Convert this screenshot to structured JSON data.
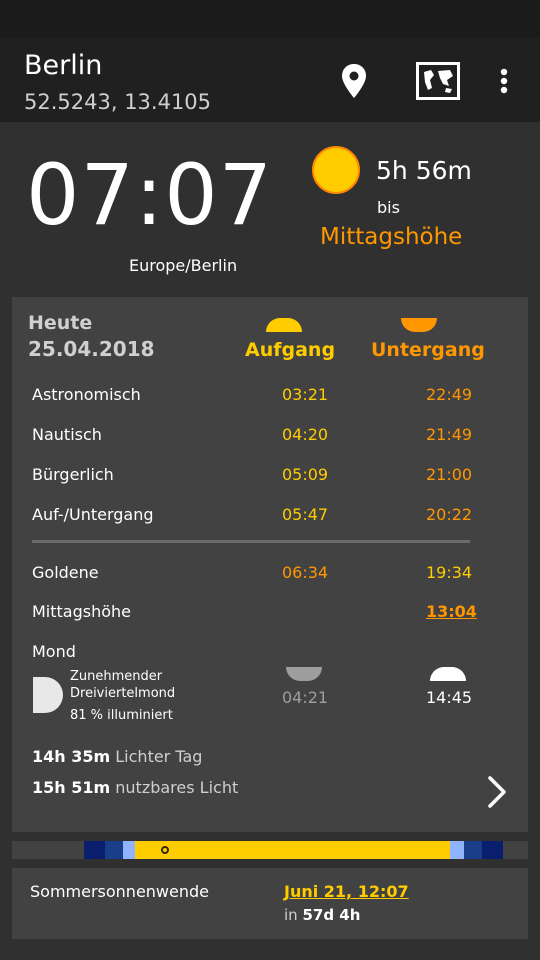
{
  "toolbar": {
    "city": "Berlin",
    "coords": "52.5243, 13.4105",
    "icons": [
      "location-pin-icon",
      "world-map-icon",
      "overflow-menu-icon"
    ]
  },
  "clock": {
    "time": "07:07",
    "timezone": "Europe/Berlin",
    "countdown": "5h 56m",
    "until_word": "bis",
    "next_event": "Mittagshöhe"
  },
  "today": {
    "label": "Heute",
    "date": "25.04.2018",
    "rise_header": "Aufgang",
    "set_header": "Untergang",
    "rows": [
      {
        "label": "Astronomisch",
        "rise": "03:21",
        "set": "22:49"
      },
      {
        "label": "Nautisch",
        "rise": "04:20",
        "set": "21:49"
      },
      {
        "label": "Bürgerlich",
        "rise": "05:09",
        "set": "21:00"
      },
      {
        "label": "Auf-/Untergang",
        "rise": "05:47",
        "set": "20:22"
      }
    ],
    "golden": {
      "label": "Goldene",
      "rise": "06:34",
      "set": "19:34"
    },
    "noon": {
      "label": "Mittagshöhe",
      "time": "13:04"
    },
    "moon": {
      "label": "Mond",
      "phase_line1": "Zunehmender",
      "phase_line2": "Dreiviertelmond",
      "illumination": "81 % illuminiert",
      "rise": "04:21",
      "set": "14:45"
    },
    "day_length": {
      "value": "14h 35m",
      "label": "Lichter Tag"
    },
    "usable_light": {
      "value": "15h 51m",
      "label": "nutzbares Licht"
    }
  },
  "colors": {
    "night": "#0a1e6e",
    "astro": "#1a3d8a",
    "nautical": "#2a56b8",
    "civil": "#8fb3ff",
    "day": "#ffcc00",
    "rise_accent": "#ffcc00",
    "set_accent": "#ff9800"
  },
  "solstice": {
    "name": "Sommersonnenwende",
    "date": "Juni 21, 12:07",
    "in_prefix": "in",
    "in_value": "57d 4h"
  }
}
